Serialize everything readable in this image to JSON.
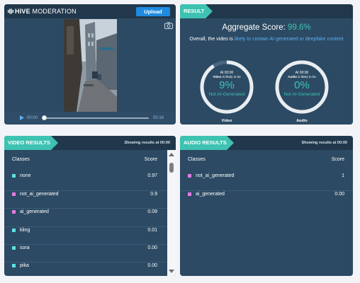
{
  "brand": {
    "name_bold": "HIVE",
    "name_rest": "MODERATION"
  },
  "header": {
    "upload_label": "Upload"
  },
  "player": {
    "current_time": "00:00",
    "duration": "00:16",
    "progress": 0
  },
  "result": {
    "tab": "RESULT",
    "aggregate_label": "Aggregate Score:",
    "aggregate_value": "99.6%",
    "overall_prefix": "Overall, the video is ",
    "overall_highlight": "likely to contain AI-generated or deepfake content",
    "gauges": [
      {
        "at": "At 00:00",
        "subject": "Video",
        "likely": "is likely to be",
        "percent": "9%",
        "label": "Not AI-Generated",
        "name": "Video",
        "fraction": 0.91
      },
      {
        "at": "At 00:00",
        "subject": "Audio",
        "likely": "is likely to be",
        "percent": "0%",
        "label": "Not AI-Generated",
        "name": "Audio",
        "fraction": 1.0
      }
    ]
  },
  "video_results": {
    "tab": "VIDEO RESULTS",
    "showing": "Showing results at 00:00",
    "col_classes": "Classes",
    "col_score": "Score",
    "rows": [
      {
        "name": "none",
        "score": "0.97",
        "color": "#5ee0e6"
      },
      {
        "name": "not_ai_generated",
        "score": "0.9",
        "color": "#e27ce6"
      },
      {
        "name": "ai_generated",
        "score": "0.09",
        "color": "#e27ce6"
      },
      {
        "name": "kling",
        "score": "0.01",
        "color": "#5ee0e6"
      },
      {
        "name": "sora",
        "score": "0.00",
        "color": "#5ee0e6"
      },
      {
        "name": "pika",
        "score": "0.00",
        "color": "#5ee0e6"
      }
    ]
  },
  "audio_results": {
    "tab": "AUDIO RESULTS",
    "showing": "Showing results at 00:00",
    "col_classes": "Classes",
    "col_score": "Score",
    "rows": [
      {
        "name": "not_ai_generated",
        "score": "1",
        "color": "#e27ce6"
      },
      {
        "name": "ai_generated",
        "score": "0.00",
        "color": "#e27ce6"
      }
    ]
  },
  "colors": {
    "accent": "#3ec2b1",
    "panel": "#2c4a63",
    "header": "#21384c",
    "link": "#5ab0f2"
  }
}
